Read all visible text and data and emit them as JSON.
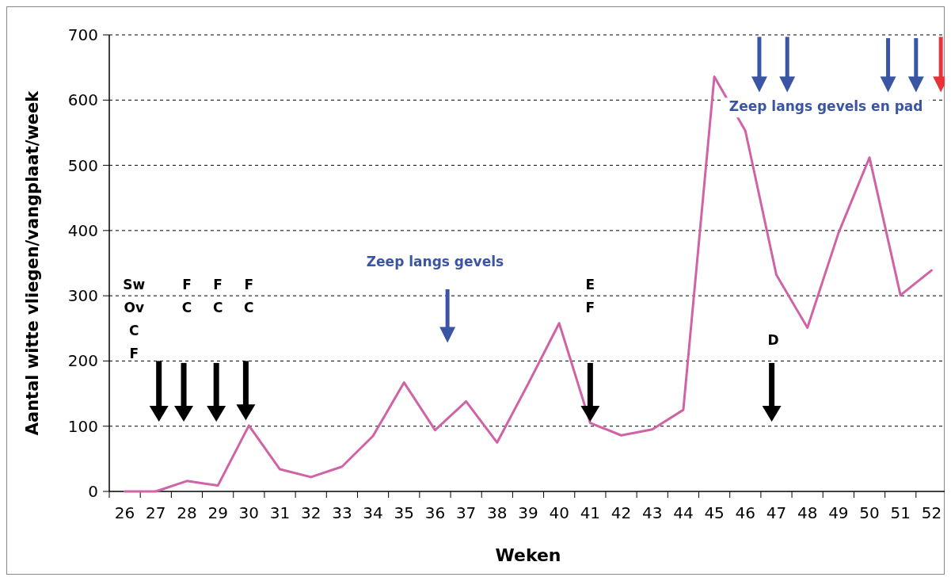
{
  "chart_data": {
    "type": "line",
    "xlabel": "Weken",
    "ylabel": "Aantal witte vliegen/vangplaat/week",
    "categories": [
      "26",
      "27",
      "28",
      "29",
      "30",
      "31",
      "32",
      "33",
      "34",
      "35",
      "36",
      "37",
      "38",
      "39",
      "40",
      "41",
      "42",
      "43",
      "44",
      "45",
      "46",
      "47",
      "48",
      "49",
      "50",
      "51",
      "52"
    ],
    "series": [
      {
        "color": "#d063a6",
        "values": [
          0,
          0,
          16,
          9,
          101,
          34,
          22,
          38,
          85,
          167,
          94,
          138,
          75,
          165,
          258,
          105,
          86,
          95,
          125,
          636,
          553,
          332,
          251,
          396,
          512,
          301,
          339
        ]
      }
    ],
    "ylim": [
      0,
      700
    ],
    "yticks": [
      0,
      100,
      200,
      300,
      400,
      500,
      600,
      700
    ],
    "grid": "y",
    "marker": "none",
    "line_style": "solid",
    "annotations": [
      "Sw\nOv\nC\nF",
      "F\nC",
      "F\nC",
      "F\nC",
      "Zeep langs gevels",
      "E\nF",
      "D",
      "Zeep langs gevels en pad"
    ]
  }
}
